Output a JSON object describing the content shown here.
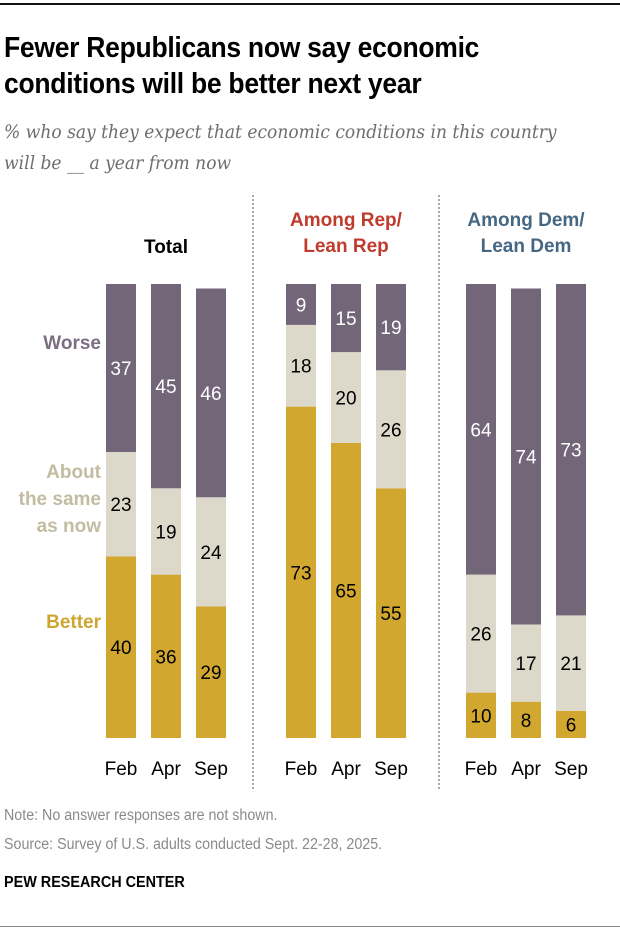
{
  "title": "Fewer Republicans now say economic conditions will be better next year",
  "subtitle": "% who say they expect that economic conditions in this country will be __ a year from now",
  "note": "Note: No answer responses are not shown.",
  "source": "Source: Survey of U.S. adults conducted Sept. 22-28, 2025.",
  "brand": "PEW RESEARCH CENTER",
  "colors": {
    "worse": "#736679",
    "same": "#dcd9cb",
    "better": "#d1a730",
    "rep": "#bf3b2c",
    "dem": "#456783",
    "label_worse": "#7a6e82",
    "label_same": "#c2bca0",
    "label_better": "#cfa532"
  },
  "chart_data": {
    "type": "bar",
    "stacked": true,
    "title": "Fewer Republicans now say economic conditions will be better next year",
    "subtitle": "% who say they expect that economic conditions in this country will be __ a year from now",
    "categories": [
      "Feb",
      "Apr",
      "Sep"
    ],
    "series_order": [
      "Better",
      "About the same as now",
      "Worse"
    ],
    "legend_labels": {
      "worse": "Worse",
      "same_lines": [
        "About",
        "the same",
        "as now"
      ],
      "better": "Better"
    },
    "panels": [
      {
        "name": "Total",
        "title_lines": [
          "Total"
        ],
        "series": [
          {
            "name": "Worse",
            "values": [
              37,
              45,
              46
            ]
          },
          {
            "name": "About the same as now",
            "values": [
              23,
              19,
              24
            ]
          },
          {
            "name": "Better",
            "values": [
              40,
              36,
              29
            ]
          }
        ]
      },
      {
        "name": "Among Rep/Lean Rep",
        "title_lines": [
          "Among Rep/",
          "Lean Rep"
        ],
        "series": [
          {
            "name": "Worse",
            "values": [
              9,
              15,
              19
            ]
          },
          {
            "name": "About the same as now",
            "values": [
              18,
              20,
              26
            ]
          },
          {
            "name": "Better",
            "values": [
              73,
              65,
              55
            ]
          }
        ]
      },
      {
        "name": "Among Dem/Lean Dem",
        "title_lines": [
          "Among Dem/",
          "Lean Dem"
        ],
        "series": [
          {
            "name": "Worse",
            "values": [
              64,
              74,
              73
            ]
          },
          {
            "name": "About the same as now",
            "values": [
              26,
              17,
              21
            ]
          },
          {
            "name": "Better",
            "values": [
              10,
              8,
              6
            ]
          }
        ]
      }
    ],
    "ylim": [
      0,
      100
    ],
    "grid": false
  }
}
